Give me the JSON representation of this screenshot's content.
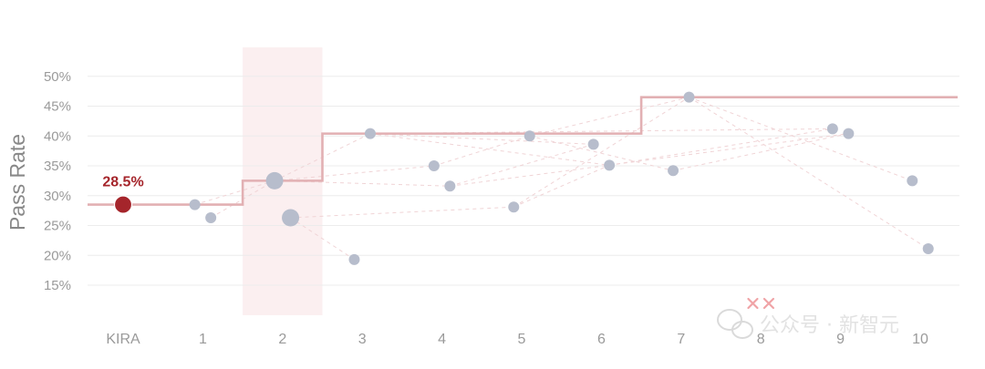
{
  "chart_data": {
    "type": "scatter",
    "ylabel": "Pass Rate",
    "yticks": [
      "15%",
      "20%",
      "25%",
      "30%",
      "35%",
      "40%",
      "45%",
      "50%"
    ],
    "ylim": [
      10,
      52
    ],
    "categories": [
      "KIRA",
      "1",
      "2",
      "3",
      "4",
      "5",
      "6",
      "7",
      "8",
      "9",
      "10"
    ],
    "highlighted_category": "2",
    "baseline": {
      "label": "KIRA",
      "value": 28.5,
      "value_label": "28.5%",
      "color": "#a5252b"
    },
    "points": [
      {
        "x": 0.9,
        "y": 28.5,
        "large": false
      },
      {
        "x": 1.1,
        "y": 26.3,
        "large": false
      },
      {
        "x": 1.9,
        "y": 32.5,
        "large": true
      },
      {
        "x": 2.1,
        "y": 26.3,
        "large": true
      },
      {
        "x": 2.9,
        "y": 19.3,
        "large": false
      },
      {
        "x": 3.1,
        "y": 40.4,
        "large": false
      },
      {
        "x": 3.9,
        "y": 35.0,
        "large": false
      },
      {
        "x": 4.1,
        "y": 31.6,
        "large": false
      },
      {
        "x": 4.9,
        "y": 28.1,
        "large": false
      },
      {
        "x": 5.1,
        "y": 40.0,
        "large": false
      },
      {
        "x": 5.9,
        "y": 38.6,
        "large": false
      },
      {
        "x": 6.1,
        "y": 35.1,
        "large": false
      },
      {
        "x": 6.9,
        "y": 34.2,
        "large": false
      },
      {
        "x": 7.1,
        "y": 46.5,
        "large": false
      },
      {
        "x": 8.9,
        "y": 41.2,
        "large": false
      },
      {
        "x": 9.1,
        "y": 40.4,
        "large": false
      },
      {
        "x": 9.9,
        "y": 32.5,
        "large": false
      },
      {
        "x": 10.1,
        "y": 21.1,
        "large": false
      }
    ],
    "frontier": [
      {
        "x": 0,
        "y": 28.5
      },
      {
        "x": 2,
        "y": 32.5
      },
      {
        "x": 3,
        "y": 40.4
      },
      {
        "x": 7,
        "y": 46.5
      }
    ],
    "connections": [
      [
        0.9,
        28.5,
        1.9,
        32.5
      ],
      [
        1.1,
        26.3,
        1.9,
        32.5
      ],
      [
        1.9,
        32.5,
        3.1,
        40.4
      ],
      [
        1.9,
        32.5,
        3.9,
        35.0
      ],
      [
        1.9,
        32.5,
        4.1,
        31.6
      ],
      [
        2.1,
        26.3,
        2.9,
        19.3
      ],
      [
        2.1,
        26.3,
        4.9,
        28.1
      ],
      [
        3.1,
        40.4,
        5.9,
        38.6
      ],
      [
        3.1,
        40.4,
        6.1,
        35.1
      ],
      [
        3.9,
        35.0,
        5.1,
        40.0
      ],
      [
        4.1,
        31.6,
        5.9,
        38.6
      ],
      [
        4.9,
        28.1,
        6.1,
        35.1
      ],
      [
        4.9,
        28.1,
        7.1,
        46.5
      ],
      [
        5.1,
        40.0,
        6.9,
        34.2
      ],
      [
        5.1,
        40.0,
        7.1,
        46.5
      ],
      [
        3.1,
        40.4,
        8.9,
        41.2
      ],
      [
        4.1,
        31.6,
        9.1,
        40.4
      ],
      [
        7.1,
        46.5,
        9.9,
        32.5
      ],
      [
        7.1,
        46.5,
        10.1,
        21.1
      ],
      [
        6.1,
        35.1,
        8.9,
        41.2
      ],
      [
        6.9,
        34.2,
        9.1,
        40.4
      ]
    ],
    "failed_markers": [
      7.9,
      8.1
    ],
    "colors": {
      "point": "#b7bdcc",
      "step": "#e2b0b3",
      "dash": "#f0d4d6",
      "highlight_band": "#fbeff0",
      "grid": "#ececec",
      "fail": "#f0a3a6"
    }
  },
  "watermark": {
    "text": "公众号 · 新智元"
  }
}
